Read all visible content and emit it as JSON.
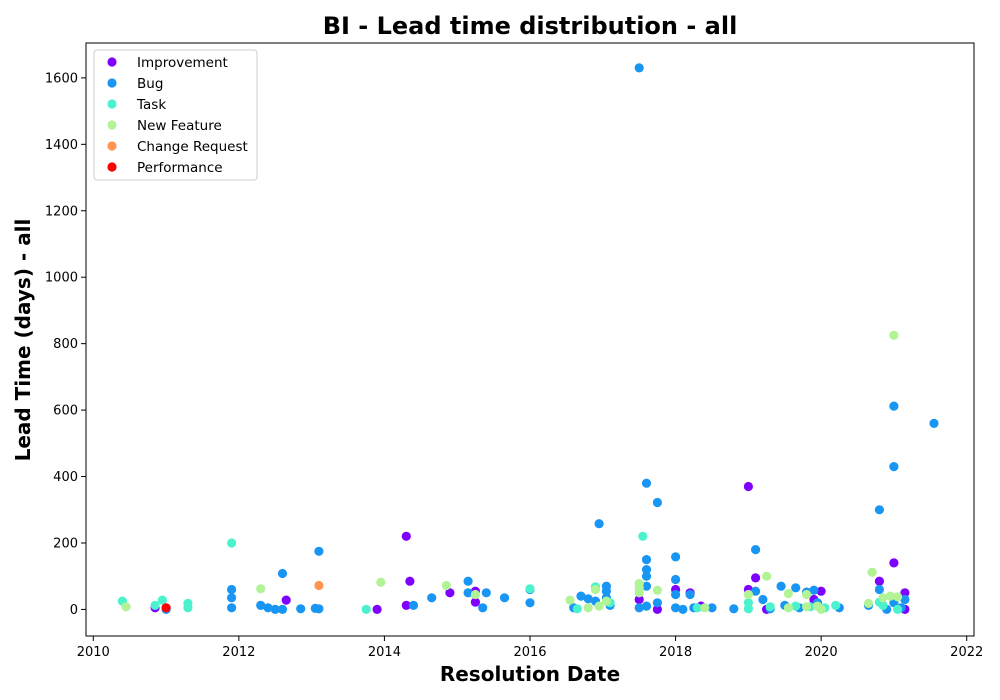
{
  "chart_data": {
    "type": "scatter",
    "title": "BI - Lead time distribution - all",
    "xlabel": "Resolution Date",
    "ylabel": "Lead Time (days) - all",
    "xlim": [
      2009.9,
      2022.1
    ],
    "ylim": [
      -80,
      1705
    ],
    "xticks": [
      2010,
      2012,
      2014,
      2016,
      2018,
      2020,
      2022
    ],
    "yticks": [
      0,
      200,
      400,
      600,
      800,
      1000,
      1200,
      1400,
      1600
    ],
    "grid": false,
    "legend_position": "upper-left",
    "series": [
      {
        "name": "Improvement",
        "color": "#8000ff",
        "points": [
          [
            2010.85,
            5
          ],
          [
            2012.65,
            28
          ],
          [
            2013.9,
            0
          ],
          [
            2014.3,
            220
          ],
          [
            2014.35,
            85
          ],
          [
            2014.3,
            12
          ],
          [
            2014.9,
            50
          ],
          [
            2015.25,
            22
          ],
          [
            2015.25,
            55
          ],
          [
            2017.5,
            30
          ],
          [
            2017.75,
            0
          ],
          [
            2018.0,
            60
          ],
          [
            2018.2,
            50
          ],
          [
            2018.35,
            10
          ],
          [
            2019.0,
            370
          ],
          [
            2019.0,
            60
          ],
          [
            2019.1,
            95
          ],
          [
            2019.25,
            0
          ],
          [
            2019.9,
            30
          ],
          [
            2020.0,
            55
          ],
          [
            2020.8,
            85
          ],
          [
            2021.0,
            140
          ],
          [
            2021.15,
            50
          ],
          [
            2021.15,
            0
          ]
        ]
      },
      {
        "name": "Bug",
        "color": "#1996f3",
        "points": [
          [
            2011.0,
            0
          ],
          [
            2011.9,
            60
          ],
          [
            2011.9,
            35
          ],
          [
            2011.9,
            5
          ],
          [
            2012.3,
            12
          ],
          [
            2012.4,
            5
          ],
          [
            2012.5,
            0
          ],
          [
            2012.6,
            108
          ],
          [
            2012.6,
            0
          ],
          [
            2012.85,
            2
          ],
          [
            2013.05,
            3
          ],
          [
            2013.1,
            175
          ],
          [
            2013.1,
            2
          ],
          [
            2014.4,
            12
          ],
          [
            2014.65,
            35
          ],
          [
            2015.15,
            85
          ],
          [
            2015.15,
            50
          ],
          [
            2015.35,
            5
          ],
          [
            2015.4,
            50
          ],
          [
            2015.65,
            35
          ],
          [
            2016.0,
            60
          ],
          [
            2016.0,
            20
          ],
          [
            2016.6,
            5
          ],
          [
            2016.7,
            40
          ],
          [
            2016.8,
            32
          ],
          [
            2016.9,
            25
          ],
          [
            2016.95,
            258
          ],
          [
            2017.05,
            70
          ],
          [
            2017.05,
            55
          ],
          [
            2017.05,
            35
          ],
          [
            2017.1,
            12
          ],
          [
            2017.5,
            1630
          ],
          [
            2017.5,
            5
          ],
          [
            2017.6,
            380
          ],
          [
            2017.6,
            120
          ],
          [
            2017.6,
            100
          ],
          [
            2017.6,
            150
          ],
          [
            2017.6,
            70
          ],
          [
            2017.6,
            10
          ],
          [
            2017.75,
            322
          ],
          [
            2017.75,
            20
          ],
          [
            2018.0,
            158
          ],
          [
            2018.0,
            90
          ],
          [
            2018.0,
            45
          ],
          [
            2018.0,
            5
          ],
          [
            2018.1,
            0
          ],
          [
            2018.2,
            45
          ],
          [
            2018.25,
            5
          ],
          [
            2018.5,
            5
          ],
          [
            2018.8,
            2
          ],
          [
            2019.1,
            180
          ],
          [
            2019.1,
            55
          ],
          [
            2019.2,
            30
          ],
          [
            2019.3,
            2
          ],
          [
            2019.45,
            70
          ],
          [
            2019.5,
            12
          ],
          [
            2019.65,
            65
          ],
          [
            2019.7,
            5
          ],
          [
            2019.8,
            52
          ],
          [
            2019.9,
            58
          ],
          [
            2019.95,
            20
          ],
          [
            2020.25,
            5
          ],
          [
            2020.65,
            12
          ],
          [
            2020.8,
            300
          ],
          [
            2020.8,
            60
          ],
          [
            2020.9,
            0
          ],
          [
            2021.0,
            612
          ],
          [
            2021.0,
            430
          ],
          [
            2021.0,
            20
          ],
          [
            2021.1,
            5
          ],
          [
            2021.15,
            30
          ],
          [
            2021.55,
            560
          ]
        ]
      },
      {
        "name": "Task",
        "color": "#4cf2ce",
        "points": [
          [
            2010.4,
            25
          ],
          [
            2010.85,
            12
          ],
          [
            2010.95,
            28
          ],
          [
            2011.3,
            18
          ],
          [
            2011.3,
            5
          ],
          [
            2011.9,
            200
          ],
          [
            2013.75,
            0
          ],
          [
            2016.0,
            62
          ],
          [
            2016.65,
            2
          ],
          [
            2016.9,
            68
          ],
          [
            2017.1,
            20
          ],
          [
            2017.55,
            220
          ],
          [
            2018.3,
            5
          ],
          [
            2019.0,
            20
          ],
          [
            2019.0,
            2
          ],
          [
            2019.3,
            8
          ],
          [
            2019.65,
            10
          ],
          [
            2019.85,
            8
          ],
          [
            2020.05,
            5
          ],
          [
            2020.2,
            12
          ],
          [
            2020.8,
            22
          ],
          [
            2020.85,
            12
          ],
          [
            2021.05,
            0
          ]
        ]
      },
      {
        "name": "New Feature",
        "color": "#b2f396",
        "points": [
          [
            2010.45,
            8
          ],
          [
            2012.3,
            62
          ],
          [
            2013.95,
            82
          ],
          [
            2014.85,
            72
          ],
          [
            2015.25,
            45
          ],
          [
            2016.55,
            28
          ],
          [
            2016.8,
            5
          ],
          [
            2016.9,
            60
          ],
          [
            2016.95,
            10
          ],
          [
            2017.05,
            25
          ],
          [
            2017.5,
            78
          ],
          [
            2017.5,
            65
          ],
          [
            2017.5,
            50
          ],
          [
            2017.75,
            58
          ],
          [
            2018.4,
            5
          ],
          [
            2019.0,
            45
          ],
          [
            2019.25,
            100
          ],
          [
            2019.55,
            48
          ],
          [
            2019.55,
            5
          ],
          [
            2019.8,
            45
          ],
          [
            2019.8,
            8
          ],
          [
            2019.95,
            10
          ],
          [
            2020.0,
            0
          ],
          [
            2020.65,
            18
          ],
          [
            2020.7,
            112
          ],
          [
            2020.85,
            35
          ],
          [
            2020.95,
            40
          ],
          [
            2021.0,
            825
          ],
          [
            2021.05,
            38
          ]
        ]
      },
      {
        "name": "Change Request",
        "color": "#ff954e",
        "points": [
          [
            2013.1,
            72
          ]
        ]
      },
      {
        "name": "Performance",
        "color": "#ff0000",
        "points": [
          [
            2011.0,
            5
          ]
        ]
      }
    ]
  }
}
